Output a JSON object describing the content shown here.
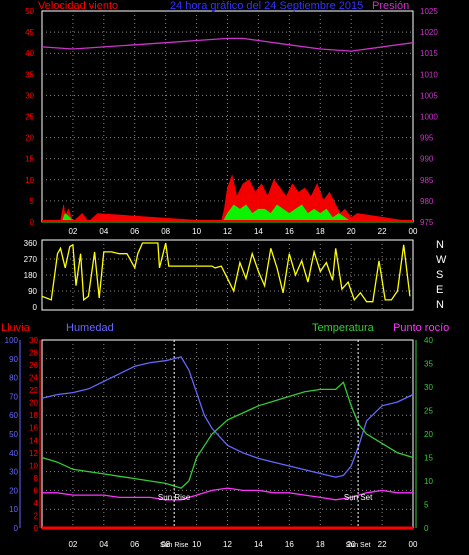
{
  "colors": {
    "wind": "#ff0000",
    "gust": "#00ff00",
    "pressure": "#cc33cc",
    "direction": "#ffff00",
    "humidity": "#6666ff",
    "temperature": "#33cc33",
    "dewpoint": "#ff33ff",
    "rain": "#ff0000",
    "frame": "#ffffff",
    "title": "#3333ff"
  },
  "header": {
    "wind_label": "Velocidad viento",
    "title": "24 hora gráfico del  24 Septiembre 2015",
    "pressure_label": "Presión"
  },
  "lower_header": {
    "rain_label": "Lluvia",
    "humidity_label": "Humedad",
    "temperature_label": "Temperatura",
    "dewpoint_label": "Punto rocío"
  },
  "markers": {
    "sunrise": "Sun Rise",
    "sunset": "Sun Set",
    "sunrise_axis": "Sun Rise",
    "sunset_axis": "Sun Set"
  },
  "chart_data": [
    {
      "type": "line",
      "title": "24 hora gráfico del  24 Septiembre 2015",
      "x_ticks": [
        "02",
        "04",
        "06",
        "08",
        "10",
        "12",
        "14",
        "16",
        "18",
        "20",
        "22",
        "00"
      ],
      "xlim_hours": [
        0,
        24
      ],
      "y_left_ticks": [
        0,
        5,
        10,
        15,
        20,
        25,
        30,
        35,
        40,
        45,
        50
      ],
      "y_right_ticks": [
        975,
        980,
        985,
        990,
        995,
        1000,
        1005,
        1010,
        1015,
        1020,
        1025
      ],
      "series": [
        {
          "name": "Velocidad viento",
          "axis": "left",
          "x": [
            0,
            1.2,
            1.4,
            1.5,
            1.7,
            1.9,
            2.0,
            2.6,
            3.0,
            3.6,
            11.6,
            11.8,
            12.0,
            12.3,
            12.6,
            13.0,
            13.4,
            13.8,
            14.2,
            14.6,
            15.0,
            15.4,
            15.8,
            16.2,
            16.6,
            17.0,
            17.4,
            17.8,
            18.2,
            18.6,
            19.0,
            19.3,
            19.6,
            20.0,
            20.4,
            24
          ],
          "values": [
            0,
            0,
            4,
            1,
            3,
            1,
            0,
            2,
            0,
            2,
            0,
            3,
            8,
            11,
            6,
            9,
            10,
            7,
            9,
            6,
            10,
            8,
            6,
            9,
            7,
            8,
            6,
            9,
            5,
            7,
            4,
            2,
            3,
            1,
            2,
            0
          ]
        },
        {
          "name": "Racha",
          "axis": "left",
          "x": [
            0,
            1.3,
            1.5,
            1.8,
            2.0,
            11.7,
            12.0,
            12.4,
            12.8,
            13.2,
            13.6,
            14.0,
            14.4,
            14.8,
            15.2,
            15.6,
            16.0,
            16.4,
            16.8,
            17.2,
            17.6,
            18.0,
            18.4,
            18.8,
            19.2,
            19.6,
            20.0,
            24
          ],
          "values": [
            0,
            0,
            2,
            1,
            0,
            0,
            2,
            4,
            3,
            4,
            2,
            3,
            3,
            2,
            4,
            3,
            2,
            3,
            4,
            2,
            3,
            2,
            3,
            1,
            2,
            1,
            0,
            0
          ]
        },
        {
          "name": "Presión",
          "axis": "right",
          "x": [
            0,
            2,
            4,
            6,
            8,
            10,
            12,
            13,
            14,
            16,
            18,
            20,
            22,
            24
          ],
          "values": [
            1016.5,
            1016,
            1016.5,
            1017,
            1017.5,
            1018,
            1018.5,
            1018.5,
            1018,
            1017,
            1016,
            1015.5,
            1016.5,
            1017.5
          ]
        }
      ]
    },
    {
      "type": "line",
      "title": "",
      "x_ticks": [],
      "y_left_ticks": [
        0,
        90,
        180,
        270,
        360
      ],
      "y_right_labels": [
        "N",
        "W",
        "S",
        "E",
        "N"
      ],
      "series": [
        {
          "name": "Dirección",
          "x": [
            0,
            0.6,
            0.8,
            1.0,
            1.2,
            1.5,
            1.8,
            2.0,
            2.2,
            2.5,
            2.7,
            3.0,
            3.4,
            3.7,
            4.0,
            4.5,
            5.0,
            5.5,
            6.0,
            6.2,
            6.5,
            7.5,
            7.6,
            8.0,
            8.2,
            9.0,
            10.0,
            11.0,
            11.2,
            11.6,
            12.0,
            12.4,
            12.8,
            13.2,
            13.6,
            14.0,
            14.4,
            14.8,
            15.2,
            15.6,
            16.0,
            16.4,
            16.8,
            17.2,
            17.6,
            18.0,
            18.4,
            18.8,
            19.0,
            19.4,
            19.8,
            20.2,
            20.6,
            21.0,
            21.4,
            21.8,
            22.2,
            22.6,
            23.0,
            23.4,
            23.8
          ],
          "values": [
            60,
            40,
            170,
            300,
            330,
            220,
            340,
            350,
            120,
            300,
            40,
            60,
            310,
            50,
            310,
            310,
            300,
            300,
            220,
            300,
            360,
            360,
            220,
            360,
            230,
            230,
            230,
            230,
            220,
            230,
            160,
            90,
            250,
            160,
            300,
            200,
            120,
            330,
            220,
            80,
            300,
            180,
            260,
            140,
            310,
            200,
            250,
            150,
            330,
            100,
            140,
            40,
            80,
            30,
            30,
            260,
            40,
            40,
            90,
            350,
            60
          ]
        }
      ]
    },
    {
      "type": "line",
      "title": "",
      "x_ticks": [
        "02",
        "04",
        "06",
        "08",
        "10",
        "12",
        "14",
        "16",
        "18",
        "20",
        "22",
        "00"
      ],
      "y_left_rain_ticks": [
        0,
        2,
        4,
        6,
        8,
        10,
        12,
        14,
        16,
        18,
        20,
        22,
        24,
        26,
        28,
        30
      ],
      "y_left_humidity_ticks": [
        0,
        10,
        20,
        30,
        40,
        50,
        60,
        70,
        80,
        90,
        100
      ],
      "y_right_ticks": [
        0,
        5,
        10,
        15,
        20,
        25,
        30,
        35,
        40
      ],
      "series": [
        {
          "name": "Humedad",
          "axis": "humidity",
          "x": [
            0,
            1,
            2,
            3,
            4,
            5,
            6,
            7,
            8,
            9,
            9.5,
            10,
            10.5,
            11,
            12,
            13,
            14,
            15,
            16,
            17,
            18,
            19,
            19.5,
            20,
            20.5,
            21,
            22,
            23,
            24
          ],
          "values": [
            69,
            71,
            72,
            74,
            78,
            82,
            86,
            88,
            89,
            91,
            84,
            72,
            60,
            53,
            44,
            40,
            37,
            35,
            33,
            31,
            29,
            27,
            28,
            33,
            44,
            57,
            65,
            67,
            71
          ]
        },
        {
          "name": "Temperatura",
          "axis": "temperature",
          "x": [
            0,
            1,
            2,
            3,
            4,
            5,
            6,
            7,
            8,
            8.5,
            9,
            9.5,
            10,
            11,
            12,
            13,
            14,
            15,
            16,
            17,
            18,
            19,
            19.5,
            20,
            20.5,
            21,
            22,
            23,
            24
          ],
          "values": [
            15,
            14,
            12.5,
            12,
            11.5,
            11,
            10.5,
            10,
            9.5,
            9,
            8.5,
            10,
            15,
            20,
            23,
            24.5,
            26,
            27,
            28,
            29,
            29.5,
            29.5,
            31,
            26,
            22,
            20,
            18,
            16,
            15
          ]
        },
        {
          "name": "Punto rocío",
          "axis": "temperature",
          "x": [
            0,
            1,
            2,
            3,
            4,
            5,
            6,
            7,
            8,
            9,
            10,
            11,
            12,
            13,
            14,
            15,
            16,
            17,
            18,
            19,
            20,
            21,
            22,
            23,
            24
          ],
          "values": [
            7.5,
            7.5,
            7,
            7,
            7,
            6.5,
            6.5,
            6.5,
            6,
            6,
            7,
            8,
            8.5,
            8,
            8,
            7.5,
            7.5,
            7,
            6.5,
            6,
            6.5,
            7.5,
            8,
            7.5,
            7.5
          ]
        },
        {
          "name": "Lluvia",
          "axis": "rain",
          "x": [
            0,
            24
          ],
          "values": [
            0,
            0
          ]
        }
      ],
      "sunrise_hour": 8.55,
      "sunset_hour": 20.45
    }
  ]
}
